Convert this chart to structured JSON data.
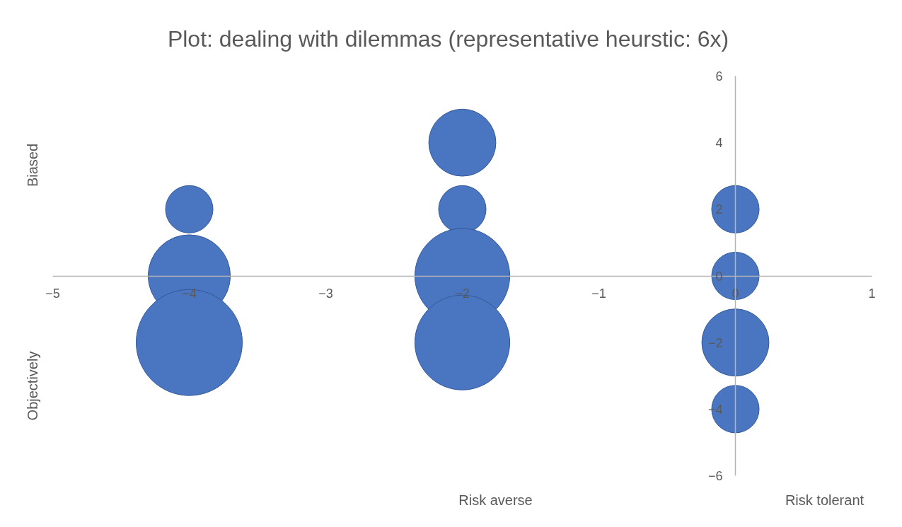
{
  "chart_data": {
    "type": "bubble",
    "title": "Plot: dealing with dilemmas (representative heurstic: 6x)",
    "x": [
      -4,
      -4,
      -4,
      -2,
      -2,
      -2,
      -2,
      0,
      0,
      0,
      0
    ],
    "values": [
      2,
      0,
      -2,
      4,
      2,
      0,
      -2,
      2,
      0,
      -2,
      -4
    ],
    "sizes": [
      0.2,
      0.6,
      1,
      0.4,
      0.2,
      0.8,
      0.8,
      0.2,
      0.2,
      0.4,
      0.2
    ],
    "color": "#4a76c1",
    "xlim": [
      -5,
      1
    ],
    "ylim": [
      -6,
      6
    ],
    "xticks": [
      -5,
      -4,
      -3,
      -2,
      -1,
      0,
      1
    ],
    "yticks": [
      -6,
      -4,
      -2,
      0,
      2,
      4,
      6
    ],
    "annotations": [
      "Biased",
      "Objectively",
      "Risk averse",
      "Risk tolerant"
    ]
  }
}
